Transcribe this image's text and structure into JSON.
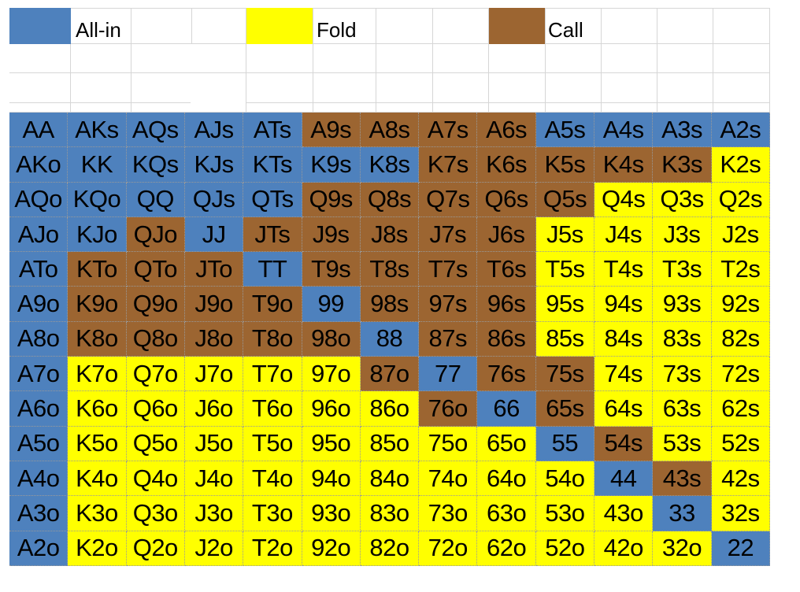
{
  "legend": {
    "allin": {
      "label": "All-in",
      "color": "#4e81bd"
    },
    "fold": {
      "label": "Fold",
      "color": "#ffff00"
    },
    "call": {
      "label": "Call",
      "color": "#9c6531"
    }
  },
  "matrix": {
    "rows": [
      [
        [
          "AA",
          "A"
        ],
        [
          "AKs",
          "A"
        ],
        [
          "AQs",
          "A"
        ],
        [
          "AJs",
          "A"
        ],
        [
          "ATs",
          "A"
        ],
        [
          "A9s",
          "C"
        ],
        [
          "A8s",
          "C"
        ],
        [
          "A7s",
          "C"
        ],
        [
          "A6s",
          "C"
        ],
        [
          "A5s",
          "A"
        ],
        [
          "A4s",
          "A"
        ],
        [
          "A3s",
          "A"
        ],
        [
          "A2s",
          "A"
        ]
      ],
      [
        [
          "AKo",
          "A"
        ],
        [
          "KK",
          "A"
        ],
        [
          "KQs",
          "A"
        ],
        [
          "KJs",
          "A"
        ],
        [
          "KTs",
          "A"
        ],
        [
          "K9s",
          "A"
        ],
        [
          "K8s",
          "A"
        ],
        [
          "K7s",
          "C"
        ],
        [
          "K6s",
          "C"
        ],
        [
          "K5s",
          "C"
        ],
        [
          "K4s",
          "C"
        ],
        [
          "K3s",
          "C"
        ],
        [
          "K2s",
          "F"
        ]
      ],
      [
        [
          "AQo",
          "A"
        ],
        [
          "KQo",
          "A"
        ],
        [
          "QQ",
          "A"
        ],
        [
          "QJs",
          "A"
        ],
        [
          "QTs",
          "A"
        ],
        [
          "Q9s",
          "C"
        ],
        [
          "Q8s",
          "C"
        ],
        [
          "Q7s",
          "C"
        ],
        [
          "Q6s",
          "C"
        ],
        [
          "Q5s",
          "C"
        ],
        [
          "Q4s",
          "F"
        ],
        [
          "Q3s",
          "F"
        ],
        [
          "Q2s",
          "F"
        ]
      ],
      [
        [
          "AJo",
          "A"
        ],
        [
          "KJo",
          "A"
        ],
        [
          "QJo",
          "C"
        ],
        [
          "JJ",
          "A"
        ],
        [
          "JTs",
          "C"
        ],
        [
          "J9s",
          "C"
        ],
        [
          "J8s",
          "C"
        ],
        [
          "J7s",
          "C"
        ],
        [
          "J6s",
          "C"
        ],
        [
          "J5s",
          "F"
        ],
        [
          "J4s",
          "F"
        ],
        [
          "J3s",
          "F"
        ],
        [
          "J2s",
          "F"
        ]
      ],
      [
        [
          "ATo",
          "A"
        ],
        [
          "KTo",
          "C"
        ],
        [
          "QTo",
          "C"
        ],
        [
          "JTo",
          "C"
        ],
        [
          "TT",
          "A"
        ],
        [
          "T9s",
          "C"
        ],
        [
          "T8s",
          "C"
        ],
        [
          "T7s",
          "C"
        ],
        [
          "T6s",
          "C"
        ],
        [
          "T5s",
          "F"
        ],
        [
          "T4s",
          "F"
        ],
        [
          "T3s",
          "F"
        ],
        [
          "T2s",
          "F"
        ]
      ],
      [
        [
          "A9o",
          "A"
        ],
        [
          "K9o",
          "C"
        ],
        [
          "Q9o",
          "C"
        ],
        [
          "J9o",
          "C"
        ],
        [
          "T9o",
          "C"
        ],
        [
          "99",
          "A"
        ],
        [
          "98s",
          "C"
        ],
        [
          "97s",
          "C"
        ],
        [
          "96s",
          "C"
        ],
        [
          "95s",
          "F"
        ],
        [
          "94s",
          "F"
        ],
        [
          "93s",
          "F"
        ],
        [
          "92s",
          "F"
        ]
      ],
      [
        [
          "A8o",
          "A"
        ],
        [
          "K8o",
          "C"
        ],
        [
          "Q8o",
          "C"
        ],
        [
          "J8o",
          "C"
        ],
        [
          "T8o",
          "C"
        ],
        [
          "98o",
          "C"
        ],
        [
          "88",
          "A"
        ],
        [
          "87s",
          "C"
        ],
        [
          "86s",
          "C"
        ],
        [
          "85s",
          "F"
        ],
        [
          "84s",
          "F"
        ],
        [
          "83s",
          "F"
        ],
        [
          "82s",
          "F"
        ]
      ],
      [
        [
          "A7o",
          "A"
        ],
        [
          "K7o",
          "F"
        ],
        [
          "Q7o",
          "F"
        ],
        [
          "J7o",
          "F"
        ],
        [
          "T7o",
          "F"
        ],
        [
          "97o",
          "F"
        ],
        [
          "87o",
          "C"
        ],
        [
          "77",
          "A"
        ],
        [
          "76s",
          "C"
        ],
        [
          "75s",
          "C"
        ],
        [
          "74s",
          "F"
        ],
        [
          "73s",
          "F"
        ],
        [
          "72s",
          "F"
        ]
      ],
      [
        [
          "A6o",
          "A"
        ],
        [
          "K6o",
          "F"
        ],
        [
          "Q6o",
          "F"
        ],
        [
          "J6o",
          "F"
        ],
        [
          "T6o",
          "F"
        ],
        [
          "96o",
          "F"
        ],
        [
          "86o",
          "F"
        ],
        [
          "76o",
          "C"
        ],
        [
          "66",
          "A"
        ],
        [
          "65s",
          "C"
        ],
        [
          "64s",
          "F"
        ],
        [
          "63s",
          "F"
        ],
        [
          "62s",
          "F"
        ]
      ],
      [
        [
          "A5o",
          "A"
        ],
        [
          "K5o",
          "F"
        ],
        [
          "Q5o",
          "F"
        ],
        [
          "J5o",
          "F"
        ],
        [
          "T5o",
          "F"
        ],
        [
          "95o",
          "F"
        ],
        [
          "85o",
          "F"
        ],
        [
          "75o",
          "F"
        ],
        [
          "65o",
          "F"
        ],
        [
          "55",
          "A"
        ],
        [
          "54s",
          "C"
        ],
        [
          "53s",
          "F"
        ],
        [
          "52s",
          "F"
        ]
      ],
      [
        [
          "A4o",
          "A"
        ],
        [
          "K4o",
          "F"
        ],
        [
          "Q4o",
          "F"
        ],
        [
          "J4o",
          "F"
        ],
        [
          "T4o",
          "F"
        ],
        [
          "94o",
          "F"
        ],
        [
          "84o",
          "F"
        ],
        [
          "74o",
          "F"
        ],
        [
          "64o",
          "F"
        ],
        [
          "54o",
          "F"
        ],
        [
          "44",
          "A"
        ],
        [
          "43s",
          "C"
        ],
        [
          "42s",
          "F"
        ]
      ],
      [
        [
          "A3o",
          "A"
        ],
        [
          "K3o",
          "F"
        ],
        [
          "Q3o",
          "F"
        ],
        [
          "J3o",
          "F"
        ],
        [
          "T3o",
          "F"
        ],
        [
          "93o",
          "F"
        ],
        [
          "83o",
          "F"
        ],
        [
          "73o",
          "F"
        ],
        [
          "63o",
          "F"
        ],
        [
          "53o",
          "F"
        ],
        [
          "43o",
          "F"
        ],
        [
          "33",
          "A"
        ],
        [
          "32s",
          "F"
        ]
      ],
      [
        [
          "A2o",
          "A"
        ],
        [
          "K2o",
          "F"
        ],
        [
          "Q2o",
          "F"
        ],
        [
          "J2o",
          "F"
        ],
        [
          "T2o",
          "F"
        ],
        [
          "92o",
          "F"
        ],
        [
          "82o",
          "F"
        ],
        [
          "72o",
          "F"
        ],
        [
          "62o",
          "F"
        ],
        [
          "52o",
          "F"
        ],
        [
          "42o",
          "F"
        ],
        [
          "32o",
          "F"
        ],
        [
          "22",
          "A"
        ]
      ]
    ]
  }
}
